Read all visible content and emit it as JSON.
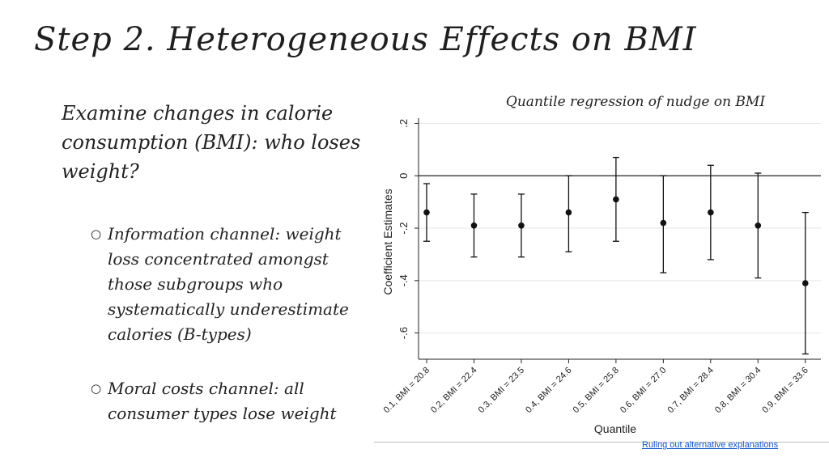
{
  "slide": {
    "title": "Step 2. Heterogeneous Effects on BMI",
    "intro": "Examine changes in calorie consumption (BMI): who loses weight?",
    "bullets": [
      "Information channel: weight loss concentrated amongst those subgroups who systematically underestimate calories (B-types)",
      "Moral costs channel: all consumer types lose weight"
    ],
    "bullet_marker": "○",
    "footer_link": "Ruling out alternative explanations"
  },
  "chart_data": {
    "type": "scatter",
    "title": "Quantile regression of nudge on BMI",
    "xlabel": "Quantile",
    "ylabel": "Coefficient Estimates",
    "categories": [
      "0.1, BMI = 20.8",
      "0.2, BMI = 22.4",
      "0.3, BMI = 23.5",
      "0.4, BMI = 24.6",
      "0.5, BMI = 25.8",
      "0.6, BMI = 27.0",
      "0.7, BMI = 28.4",
      "0.8, BMI = 30.4",
      "0.9, BMI = 33.6"
    ],
    "series": [
      {
        "values": [
          -0.14,
          -0.19,
          -0.19,
          -0.14,
          -0.09,
          -0.18,
          -0.14,
          -0.19,
          -0.41
        ],
        "ci_low": [
          -0.25,
          -0.31,
          -0.31,
          -0.29,
          -0.25,
          -0.37,
          -0.32,
          -0.39,
          -0.68
        ],
        "ci_high": [
          -0.03,
          -0.07,
          -0.07,
          0.0,
          0.07,
          0.0,
          0.04,
          0.01,
          -0.14
        ]
      }
    ],
    "ylim": [
      -0.7,
      0.22
    ],
    "yticks": [
      0.2,
      0,
      -0.2,
      -0.4,
      -0.6
    ],
    "ytick_labels": [
      ".2",
      "0",
      "-.2",
      "-.4",
      "-.6"
    ],
    "reference_line": 0,
    "grid": true
  }
}
